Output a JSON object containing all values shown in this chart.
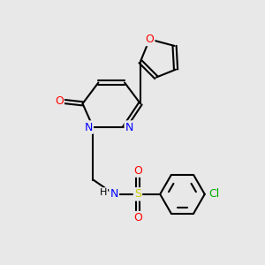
{
  "bg_color": "#e8e8e8",
  "bond_color": "#000000",
  "atom_colors": {
    "N": "#0000ff",
    "O": "#ff0000",
    "S": "#cccc00",
    "Cl": "#00aa00",
    "C": "#000000",
    "H": "#000000"
  },
  "font_size": 9,
  "bond_width": 1.5
}
